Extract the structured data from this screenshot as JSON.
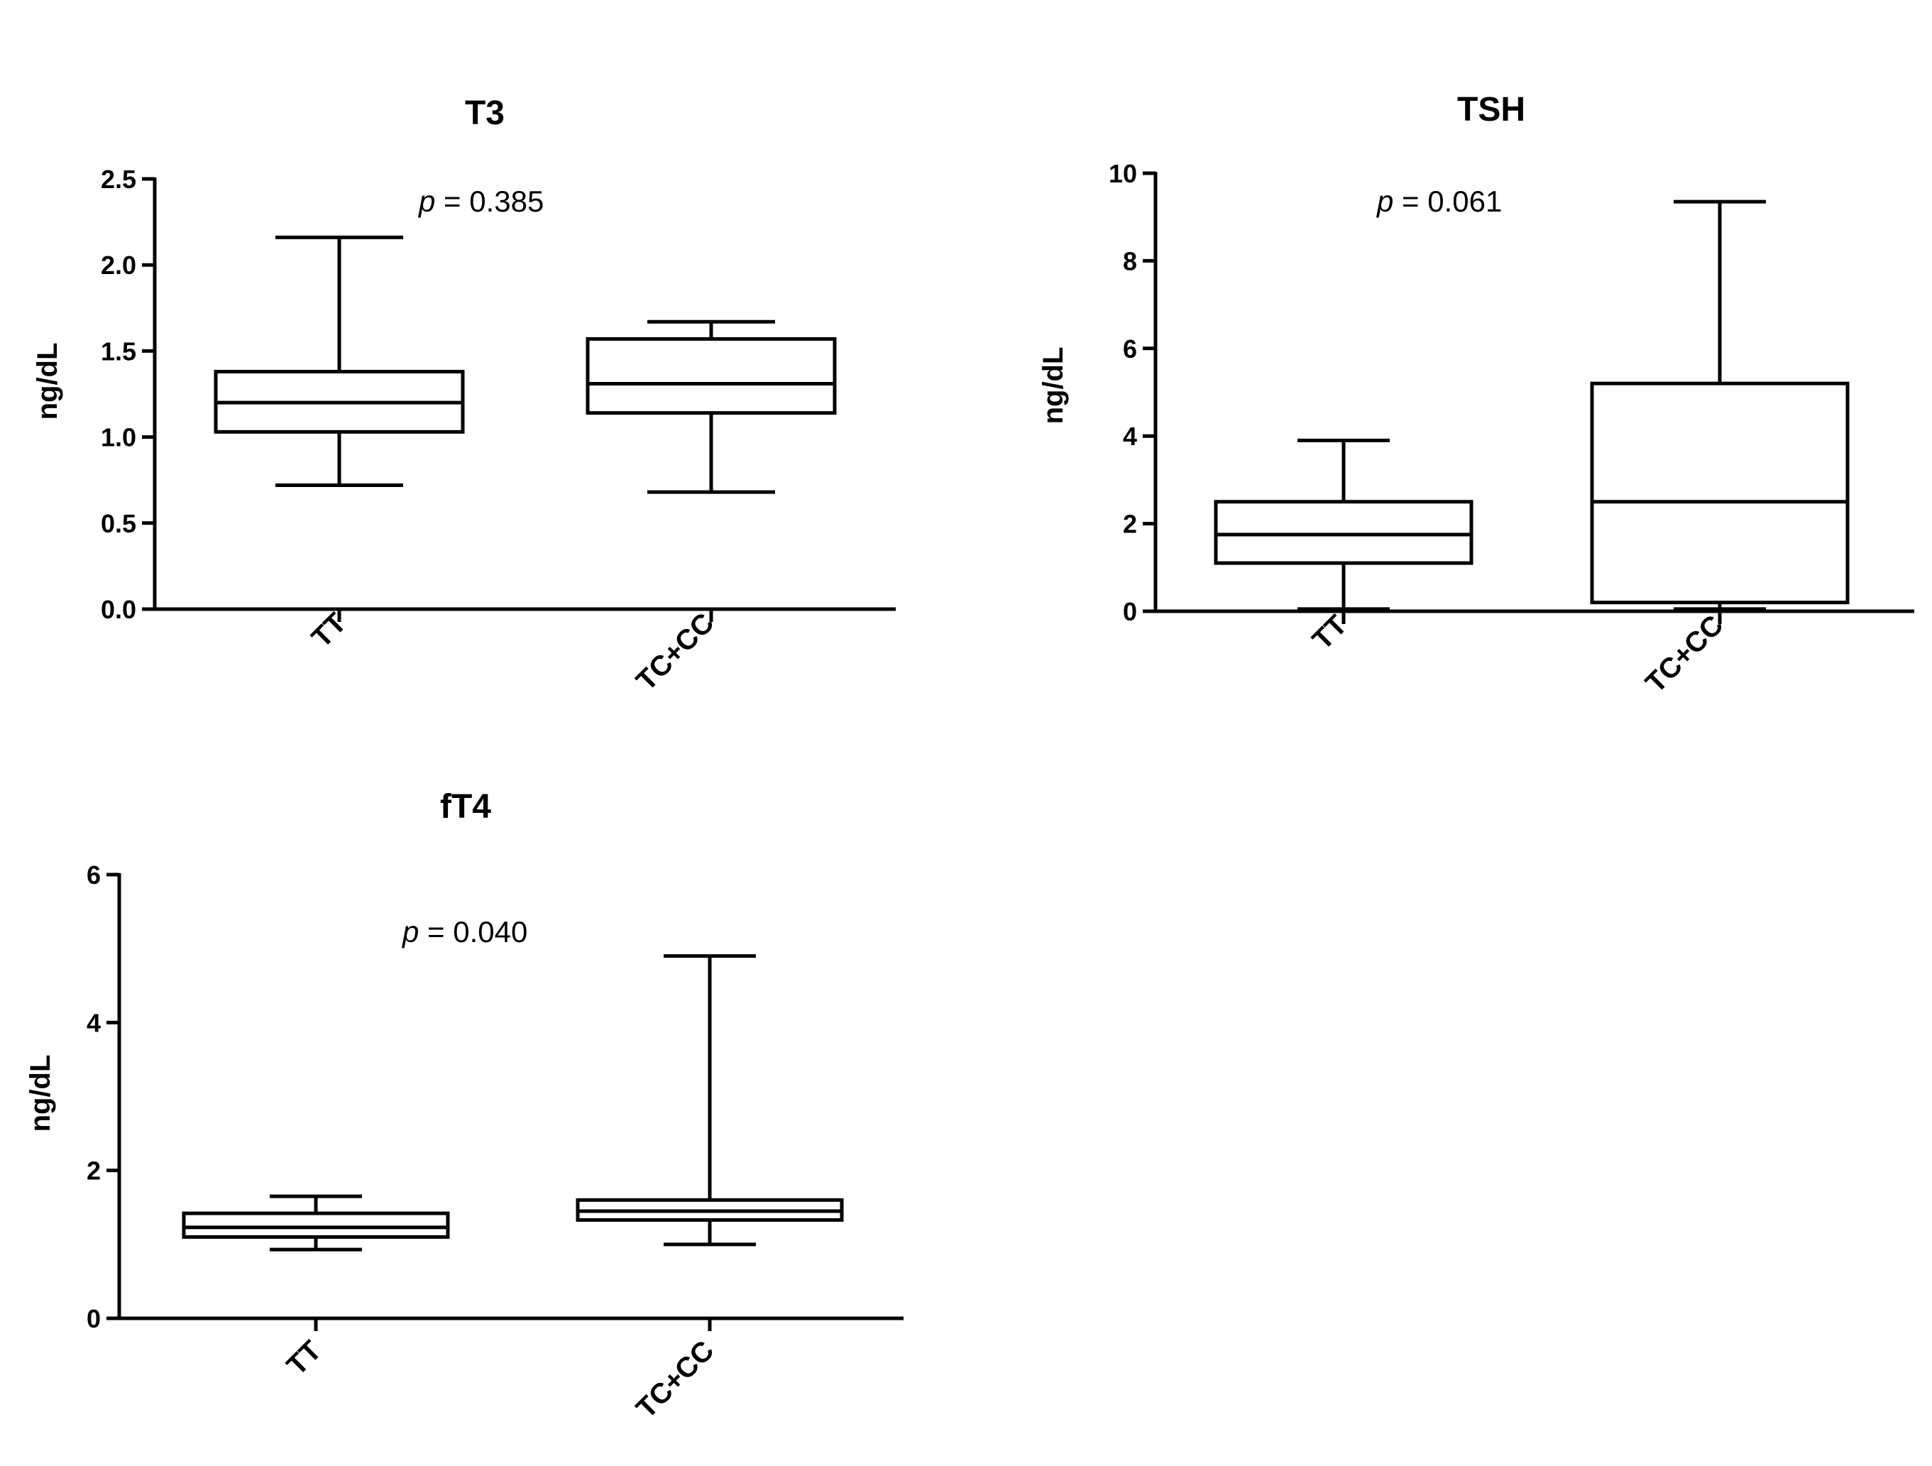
{
  "chart_data": [
    {
      "type": "box",
      "title": "T3",
      "ylabel": "ng/dL",
      "ylim": [
        0,
        2.5
      ],
      "yticks": [
        "0.0",
        "0.5",
        "1.0",
        "1.5",
        "2.0",
        "2.5"
      ],
      "categories": [
        "TT",
        "TC+CC"
      ],
      "annotation": {
        "italic": "p",
        "rest": " = 0.385"
      },
      "boxes": [
        {
          "category": "TT",
          "min": 0.72,
          "q1": 1.03,
          "median": 1.2,
          "q3": 1.38,
          "max": 2.16
        },
        {
          "category": "TC+CC",
          "min": 0.68,
          "q1": 1.14,
          "median": 1.31,
          "q3": 1.57,
          "max": 1.67
        }
      ],
      "grid": false
    },
    {
      "type": "box",
      "title": "TSH",
      "ylabel": "ng/dL",
      "ylim": [
        0,
        10
      ],
      "yticks": [
        "0",
        "2",
        "4",
        "6",
        "8",
        "10"
      ],
      "categories": [
        "TT",
        "TC+CC"
      ],
      "annotation": {
        "italic": "p",
        "rest": " = 0.061"
      },
      "boxes": [
        {
          "category": "TT",
          "min": 0.05,
          "q1": 1.1,
          "median": 1.75,
          "q3": 2.5,
          "max": 3.9
        },
        {
          "category": "TC+CC",
          "min": 0.05,
          "q1": 0.2,
          "median": 2.5,
          "q3": 5.2,
          "max": 9.35
        }
      ],
      "grid": false
    },
    {
      "type": "box",
      "title": "fT4",
      "ylabel": "ng/dL",
      "ylim": [
        0,
        6
      ],
      "yticks": [
        "0",
        "2",
        "4",
        "6"
      ],
      "categories": [
        "TT",
        "TC+CC"
      ],
      "annotation": {
        "italic": "p",
        "rest": " = 0.040"
      },
      "boxes": [
        {
          "category": "TT",
          "min": 0.93,
          "q1": 1.1,
          "median": 1.23,
          "q3": 1.42,
          "max": 1.65
        },
        {
          "category": "TC+CC",
          "min": 1.0,
          "q1": 1.33,
          "median": 1.45,
          "q3": 1.6,
          "max": 4.9
        }
      ],
      "grid": false
    }
  ]
}
